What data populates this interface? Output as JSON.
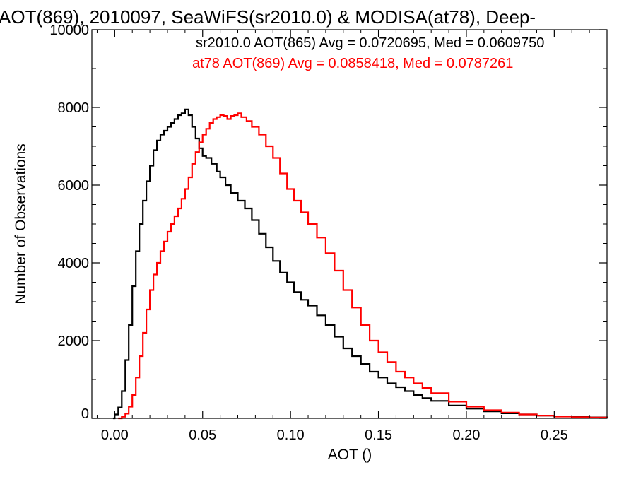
{
  "chart_data": {
    "type": "line",
    "title": "AOT(869), 2010097, SeaWiFS(sr2010.0) & MODISA(at78), Deep-",
    "xlabel": "AOT ()",
    "ylabel": "Number of Observations",
    "xlim": [
      -0.013,
      0.28
    ],
    "ylim": [
      0,
      10000
    ],
    "x_ticks": [
      "0.00",
      "0.05",
      "0.10",
      "0.15",
      "0.20",
      "0.25"
    ],
    "y_ticks": [
      "0",
      "2000",
      "4000",
      "6000",
      "8000",
      "10000"
    ],
    "grid": false,
    "legend_position": "top-right",
    "series": [
      {
        "name": "sr2010.0 AOT(865) Avg = 0.0720695, Med = 0.0609750",
        "color": "#000000",
        "step": true,
        "x": [
          -0.001,
          0.0,
          0.002,
          0.004,
          0.006,
          0.008,
          0.01,
          0.012,
          0.014,
          0.016,
          0.018,
          0.02,
          0.022,
          0.024,
          0.026,
          0.028,
          0.03,
          0.032,
          0.034,
          0.036,
          0.038,
          0.04,
          0.042,
          0.044,
          0.046,
          0.048,
          0.05,
          0.052,
          0.055,
          0.058,
          0.06,
          0.063,
          0.066,
          0.07,
          0.074,
          0.078,
          0.082,
          0.086,
          0.09,
          0.094,
          0.098,
          0.102,
          0.106,
          0.11,
          0.115,
          0.12,
          0.125,
          0.13,
          0.135,
          0.14,
          0.145,
          0.15,
          0.155,
          0.16,
          0.165,
          0.17,
          0.175,
          0.18,
          0.19,
          0.2,
          0.21,
          0.22,
          0.23,
          0.24,
          0.25,
          0.26,
          0.27,
          0.28
        ],
        "values": [
          0,
          100,
          280,
          700,
          1500,
          2400,
          3400,
          4300,
          5000,
          5600,
          6100,
          6500,
          6900,
          7150,
          7300,
          7400,
          7500,
          7600,
          7700,
          7800,
          7850,
          7950,
          7800,
          7500,
          7200,
          6950,
          6750,
          6700,
          6550,
          6350,
          6200,
          6000,
          5800,
          5600,
          5400,
          5100,
          4750,
          4400,
          4050,
          3750,
          3500,
          3250,
          3050,
          2900,
          2650,
          2400,
          2100,
          1800,
          1600,
          1400,
          1200,
          1050,
          900,
          800,
          700,
          600,
          520,
          450,
          330,
          250,
          180,
          130,
          100,
          70,
          50,
          35,
          25,
          15
        ]
      },
      {
        "name": "at78 AOT(869) Avg = 0.0858418, Med = 0.0787261",
        "color": "#ff0000",
        "step": true,
        "x": [
          0.002,
          0.004,
          0.006,
          0.008,
          0.01,
          0.012,
          0.014,
          0.016,
          0.018,
          0.02,
          0.022,
          0.024,
          0.026,
          0.028,
          0.03,
          0.032,
          0.034,
          0.036,
          0.038,
          0.04,
          0.042,
          0.044,
          0.046,
          0.048,
          0.05,
          0.052,
          0.054,
          0.056,
          0.058,
          0.06,
          0.062,
          0.064,
          0.066,
          0.068,
          0.07,
          0.072,
          0.075,
          0.078,
          0.082,
          0.086,
          0.09,
          0.094,
          0.098,
          0.102,
          0.106,
          0.11,
          0.115,
          0.12,
          0.125,
          0.13,
          0.135,
          0.14,
          0.145,
          0.15,
          0.155,
          0.16,
          0.165,
          0.17,
          0.175,
          0.18,
          0.19,
          0.2,
          0.21,
          0.22,
          0.23,
          0.24,
          0.25,
          0.26,
          0.27,
          0.28
        ],
        "values": [
          0,
          40,
          120,
          300,
          600,
          1050,
          1600,
          2200,
          2800,
          3300,
          3700,
          4000,
          4300,
          4550,
          4800,
          5000,
          5200,
          5400,
          5650,
          5900,
          6200,
          6550,
          6850,
          7100,
          7300,
          7450,
          7600,
          7700,
          7750,
          7800,
          7780,
          7700,
          7780,
          7800,
          7850,
          7750,
          7650,
          7500,
          7300,
          7000,
          6700,
          6300,
          5900,
          5600,
          5300,
          5000,
          4650,
          4250,
          3800,
          3300,
          2850,
          2400,
          2000,
          1700,
          1450,
          1200,
          1050,
          900,
          780,
          650,
          430,
          300,
          210,
          150,
          100,
          70,
          45,
          30,
          20,
          15
        ]
      }
    ]
  }
}
